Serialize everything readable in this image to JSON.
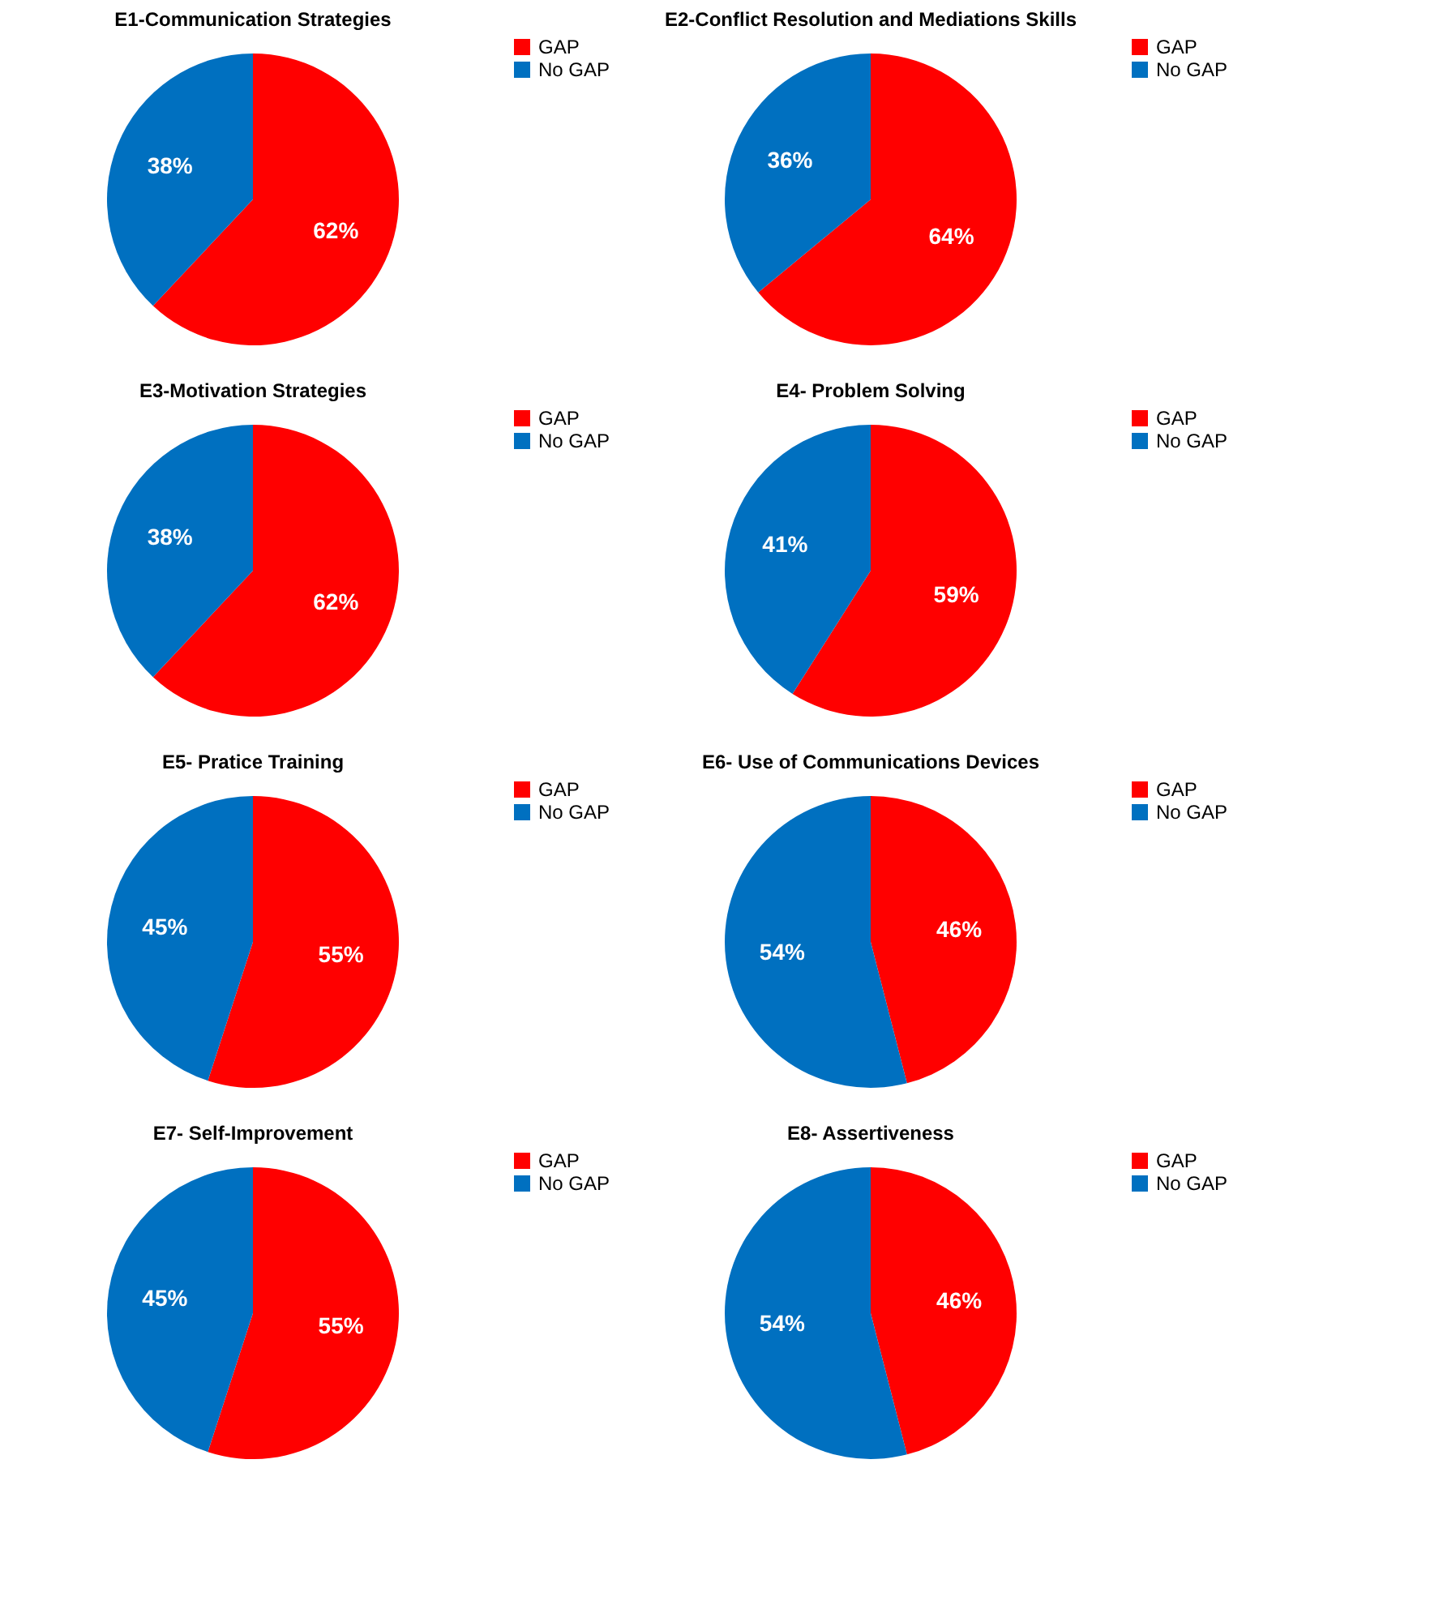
{
  "chart_data": [
    {
      "type": "pie",
      "title": "E1-Communication Strategies",
      "categories": [
        "GAP",
        "No GAP"
      ],
      "values": [
        62,
        38
      ],
      "colors": [
        "#ff0000",
        "#0070c0"
      ],
      "value_labels": [
        "62%",
        "38%"
      ],
      "legend": "right"
    },
    {
      "type": "pie",
      "title": "E2-Conflict Resolution and Mediations Skills",
      "categories": [
        "GAP",
        "No GAP"
      ],
      "values": [
        64,
        36
      ],
      "colors": [
        "#ff0000",
        "#0070c0"
      ],
      "value_labels": [
        "64%",
        "36%"
      ],
      "legend": "right"
    },
    {
      "type": "pie",
      "title": "E3-Motivation Strategies",
      "categories": [
        "GAP",
        "No GAP"
      ],
      "values": [
        62,
        38
      ],
      "colors": [
        "#ff0000",
        "#0070c0"
      ],
      "value_labels": [
        "62%",
        "38%"
      ],
      "legend": "right"
    },
    {
      "type": "pie",
      "title": "E4- Problem Solving",
      "categories": [
        "GAP",
        "No GAP"
      ],
      "values": [
        59,
        41
      ],
      "colors": [
        "#ff0000",
        "#0070c0"
      ],
      "value_labels": [
        "59%",
        "41%"
      ],
      "legend": "right"
    },
    {
      "type": "pie",
      "title": "E5- Pratice Training",
      "categories": [
        "GAP",
        "No GAP"
      ],
      "values": [
        55,
        45
      ],
      "colors": [
        "#ff0000",
        "#0070c0"
      ],
      "value_labels": [
        "55%",
        "45%"
      ],
      "legend": "right"
    },
    {
      "type": "pie",
      "title": "E6- Use of Communications Devices",
      "categories": [
        "GAP",
        "No GAP"
      ],
      "values": [
        46,
        54
      ],
      "colors": [
        "#ff0000",
        "#0070c0"
      ],
      "value_labels": [
        "46%",
        "54%"
      ],
      "legend": "right"
    },
    {
      "type": "pie",
      "title": "E7- Self-Improvement",
      "categories": [
        "GAP",
        "No GAP"
      ],
      "values": [
        55,
        45
      ],
      "colors": [
        "#ff0000",
        "#0070c0"
      ],
      "value_labels": [
        "55%",
        "45%"
      ],
      "legend": "right"
    },
    {
      "type": "pie",
      "title": "E8- Assertiveness",
      "categories": [
        "GAP",
        "No GAP"
      ],
      "values": [
        46,
        54
      ],
      "colors": [
        "#ff0000",
        "#0070c0"
      ],
      "value_labels": [
        "46%",
        "54%"
      ],
      "legend": "right"
    }
  ]
}
